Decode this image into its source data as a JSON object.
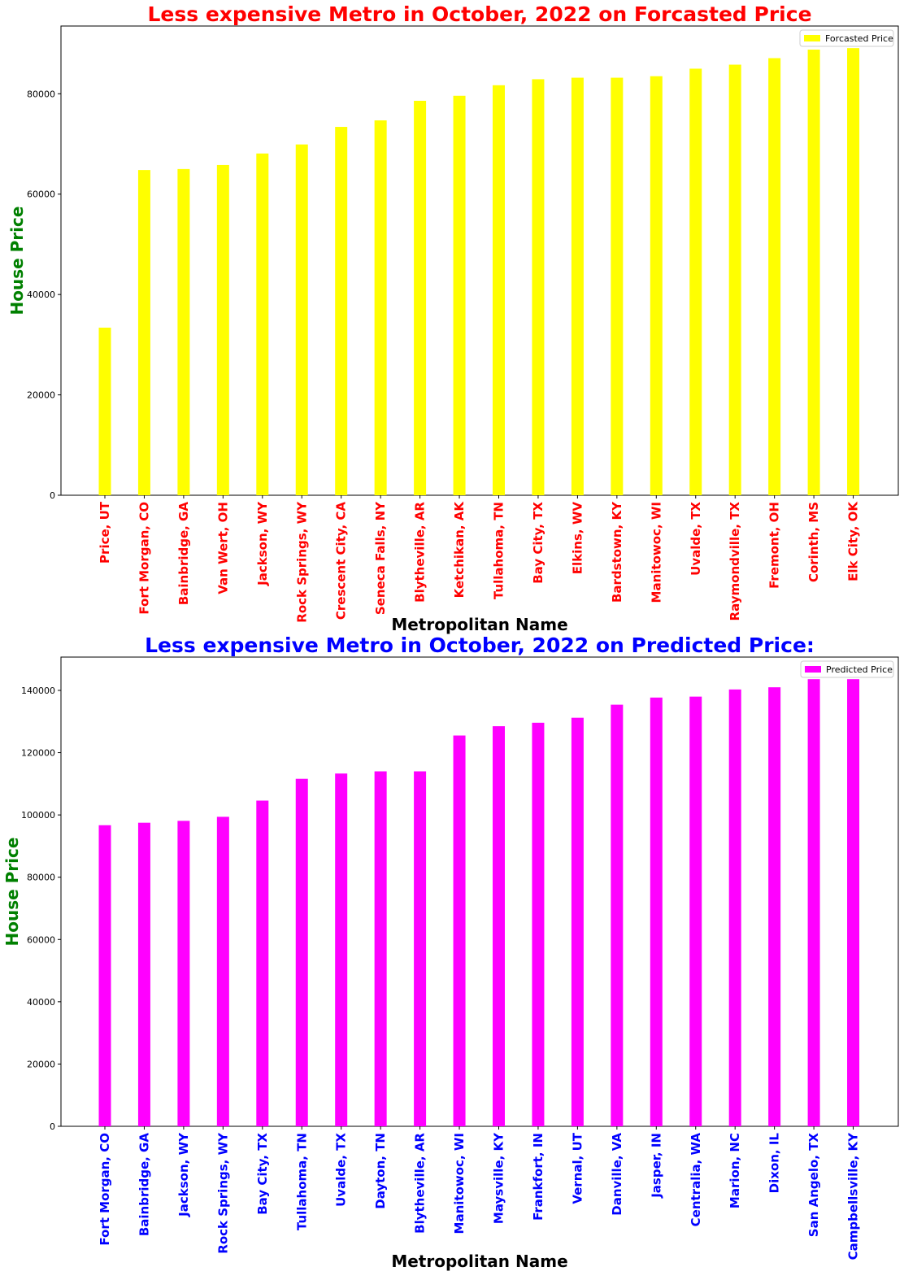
{
  "chart_data": [
    {
      "type": "bar",
      "title": "Less expensive Metro in October, 2022 on Forcasted Price",
      "xlabel": "Metropolitan Name",
      "ylabel": "House Price",
      "legend": "top-right",
      "grid": false,
      "ylim": [
        0,
        93500
      ],
      "yticks": [
        0,
        20000,
        40000,
        60000,
        80000
      ],
      "ytick_labels": [
        "0",
        "20000",
        "40000",
        "60000",
        "80000"
      ],
      "categories": [
        "Price, UT",
        "Fort Morgan, CO",
        "Bainbridge, GA",
        "Van Wert, OH",
        "Jackson, WY",
        "Rock Springs, WY",
        "Crescent City, CA",
        "Seneca Falls, NY",
        "Blytheville, AR",
        "Ketchikan, AK",
        "Tullahoma, TN",
        "Bay City, TX",
        "Elkins, WV",
        "Bardstown, KY",
        "Manitowoc, WI",
        "Uvalde, TX",
        "Raymondville, TX",
        "Fremont, OH",
        "Corinth, MS",
        "Elk City, OK"
      ],
      "series": [
        {
          "name": "Forcasted Price",
          "color": "#ffff00",
          "values": [
            33400,
            64800,
            65000,
            65800,
            68100,
            69900,
            73400,
            74700,
            78600,
            79600,
            81700,
            82900,
            83200,
            83200,
            83500,
            85000,
            85800,
            87100,
            88800,
            89100
          ]
        }
      ],
      "title_color": "#ff0000",
      "xlabel_color": "#000000",
      "ylabel_color": "#008000",
      "xtick_color": "#ff0000"
    },
    {
      "type": "bar",
      "title": "Less expensive Metro in October, 2022 on Predicted Price:",
      "xlabel": "Metropolitan Name",
      "ylabel": "House Price",
      "legend": "top-right",
      "grid": false,
      "ylim": [
        0,
        150700
      ],
      "yticks": [
        0,
        20000,
        40000,
        60000,
        80000,
        100000,
        120000,
        140000
      ],
      "ytick_labels": [
        "0",
        "20000",
        "40000",
        "60000",
        "80000",
        "100000",
        "120000",
        "140000"
      ],
      "categories": [
        "Fort Morgan, CO",
        "Bainbridge, GA",
        "Jackson, WY",
        "Rock Springs, WY",
        "Bay City, TX",
        "Tullahoma, TN",
        "Uvalde, TX",
        "Dayton, TN",
        "Blytheville, AR",
        "Manitowoc, WI",
        "Maysville, KY",
        "Frankfort, IN",
        "Vernal, UT",
        "Danville, VA",
        "Jasper, IN",
        "Centralia, WA",
        "Marion, NC",
        "Dixon, IL",
        "San Angelo, TX",
        "Campbellsville, KY"
      ],
      "series": [
        {
          "name": "Predicted Price",
          "color": "#ff00ff",
          "values": [
            96700,
            97500,
            98100,
            99400,
            104600,
            111600,
            113300,
            114000,
            114000,
            125500,
            128500,
            129600,
            131200,
            135400,
            137700,
            138000,
            140300,
            141000,
            143600,
            143600
          ]
        }
      ],
      "title_color": "#0000ff",
      "xlabel_color": "#000000",
      "ylabel_color": "#008000",
      "xtick_color": "#0000ff"
    }
  ]
}
